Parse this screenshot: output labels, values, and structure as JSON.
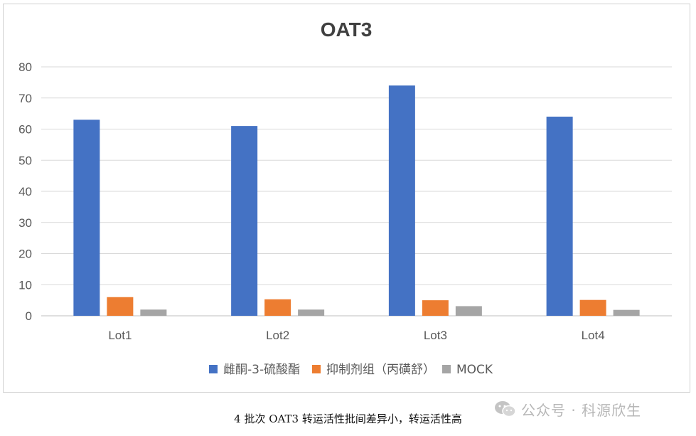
{
  "chart_data": {
    "type": "bar",
    "title": "OAT3",
    "categories": [
      "Lot1",
      "Lot2",
      "Lot3",
      "Lot4"
    ],
    "series": [
      {
        "name": "雌酮-3-硫酸酯",
        "color": "#4472c4",
        "values": [
          63,
          61,
          74,
          64
        ]
      },
      {
        "name": "抑制剂组（丙磺舒）",
        "color": "#ed7d31",
        "values": [
          6,
          5.3,
          5,
          5.1
        ]
      },
      {
        "name": "MOCK",
        "color": "#a5a5a5",
        "values": [
          2,
          2,
          3.1,
          1.9
        ]
      }
    ],
    "ylim": [
      0,
      80
    ],
    "yticks": [
      "0",
      "10",
      "20",
      "30",
      "40",
      "50",
      "60",
      "70",
      "80"
    ],
    "grid": true,
    "legend": "bottom"
  },
  "caption": "4 批次 OAT3 转运活性批间差异小，转运活性高",
  "watermark": {
    "text": "公众号 · 科源欣生",
    "icon": "wechat-icon"
  }
}
